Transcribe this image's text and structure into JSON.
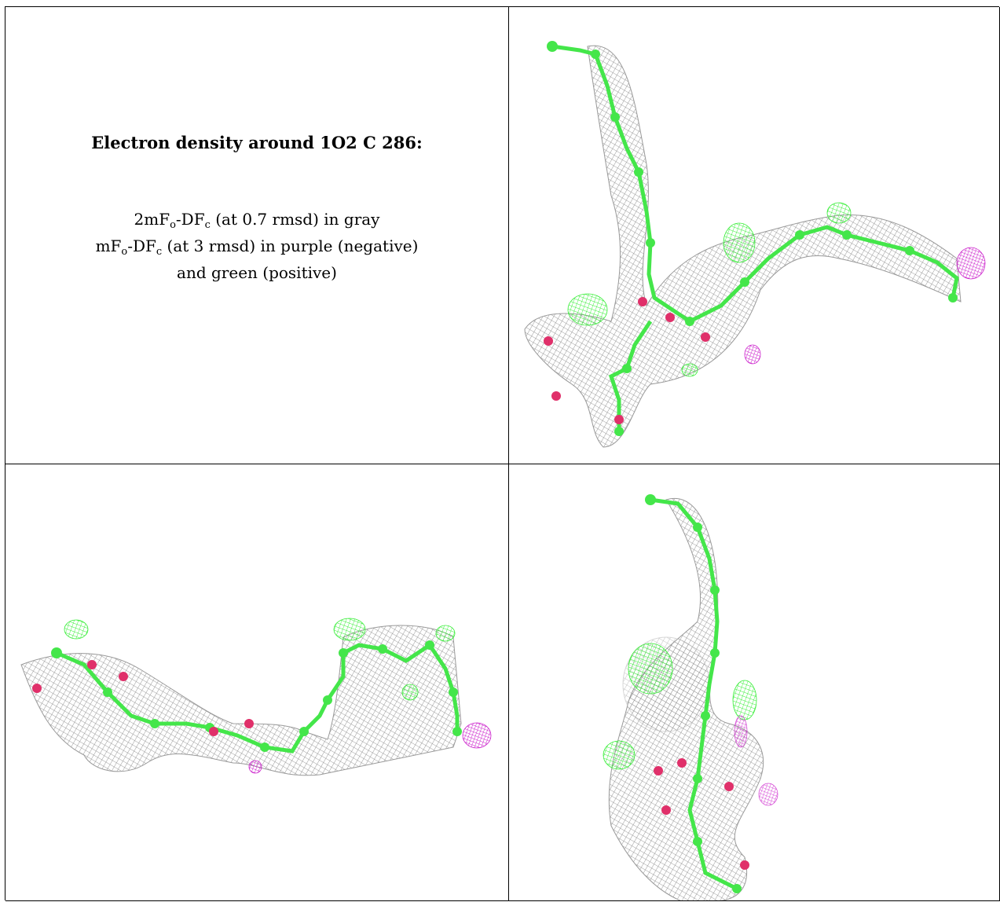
{
  "caption": {
    "title": "Electron density around 1O2 C 286:",
    "line1_prefix": "2mF",
    "line1_sub_o": "o",
    "line1_mid": "-DF",
    "line1_sub_c": "c",
    "line1_suffix": " (at 0.7 rmsd) in gray",
    "line2_prefix": "mF",
    "line2_sub_o": "o",
    "line2_mid": "-DF",
    "line2_sub_c": "c",
    "line2_suffix": " (at 3 rmsd) in purple (negative)",
    "line3": "and green (positive)"
  },
  "colors": {
    "mesh_gray": "#8a8a8a",
    "carbon_green": "#44e64a",
    "oxygen_red": "#e0306a",
    "density_green": "#33ee33",
    "density_purple": "#cc22cc"
  }
}
